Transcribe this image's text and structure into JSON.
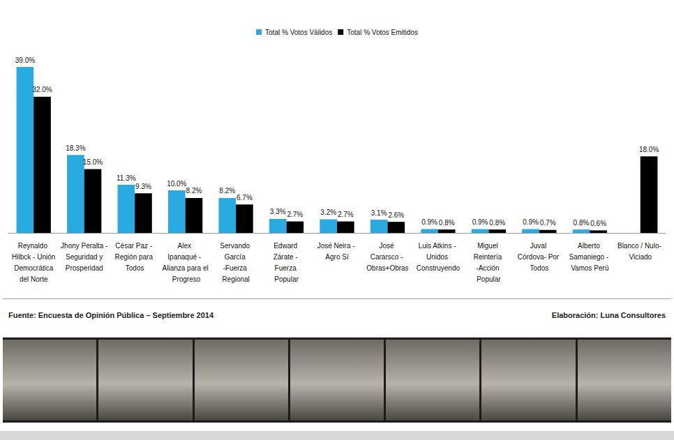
{
  "chart_data": {
    "type": "bar",
    "categories": [
      "Reynaldo Hilbck - Unión Democrática del Norte",
      "Jhony Peralta - Seguridad y Prosperidad",
      "César Paz - Región para Todos",
      "Alex Ipanaqué - Alianza para el Progreso",
      "Servando García -Fuerza Regional",
      "Edward Zárate - Fuerza Popular",
      "José Neira - Agro Sí",
      "José Cararsco - Obras+Obras",
      "Luis Atkins - Unidos Construyendo",
      "Miguel Reintería -Acción Popular",
      "Juval Córdova- Por Todos",
      "Alberto Samaniego - Vamos Perú",
      "Blanco / Nulo- Viciado"
    ],
    "series": [
      {
        "name": "Total % Votos Válidos",
        "color": "#29abe2",
        "values": [
          39.0,
          18.3,
          11.3,
          10.0,
          8.2,
          3.3,
          3.2,
          3.1,
          0.9,
          0.9,
          0.9,
          0.8,
          null
        ],
        "value_labels": [
          "39.0%",
          "18.3%",
          "11.3%",
          "10.0%",
          "8.2%",
          "3.3%",
          "3.2%",
          "3.1%",
          "0.9%",
          "0.9%",
          "0.9%",
          "0.8%",
          null
        ]
      },
      {
        "name": "Total % Votos Emitidos",
        "color": "#000000",
        "values": [
          32.0,
          15.0,
          9.3,
          8.2,
          6.7,
          2.7,
          2.7,
          2.6,
          0.8,
          0.8,
          0.7,
          0.6,
          18.0
        ],
        "value_labels": [
          "32.0%",
          "15.0%",
          "9.3%",
          "8.2%",
          "6.7%",
          "2.7%",
          "2.7%",
          "2.6%",
          "0.8%",
          "0.8%",
          "0.7%",
          "0.6%",
          "18.0%"
        ]
      }
    ],
    "data_labels": true,
    "legend": "top",
    "grid": false,
    "tick_labels": "x"
  },
  "footer": {
    "source": "Fuente: Encuesta de Opinión Pública – Septiembre 2014",
    "credit": "Elaboración: Luna Consultores"
  }
}
